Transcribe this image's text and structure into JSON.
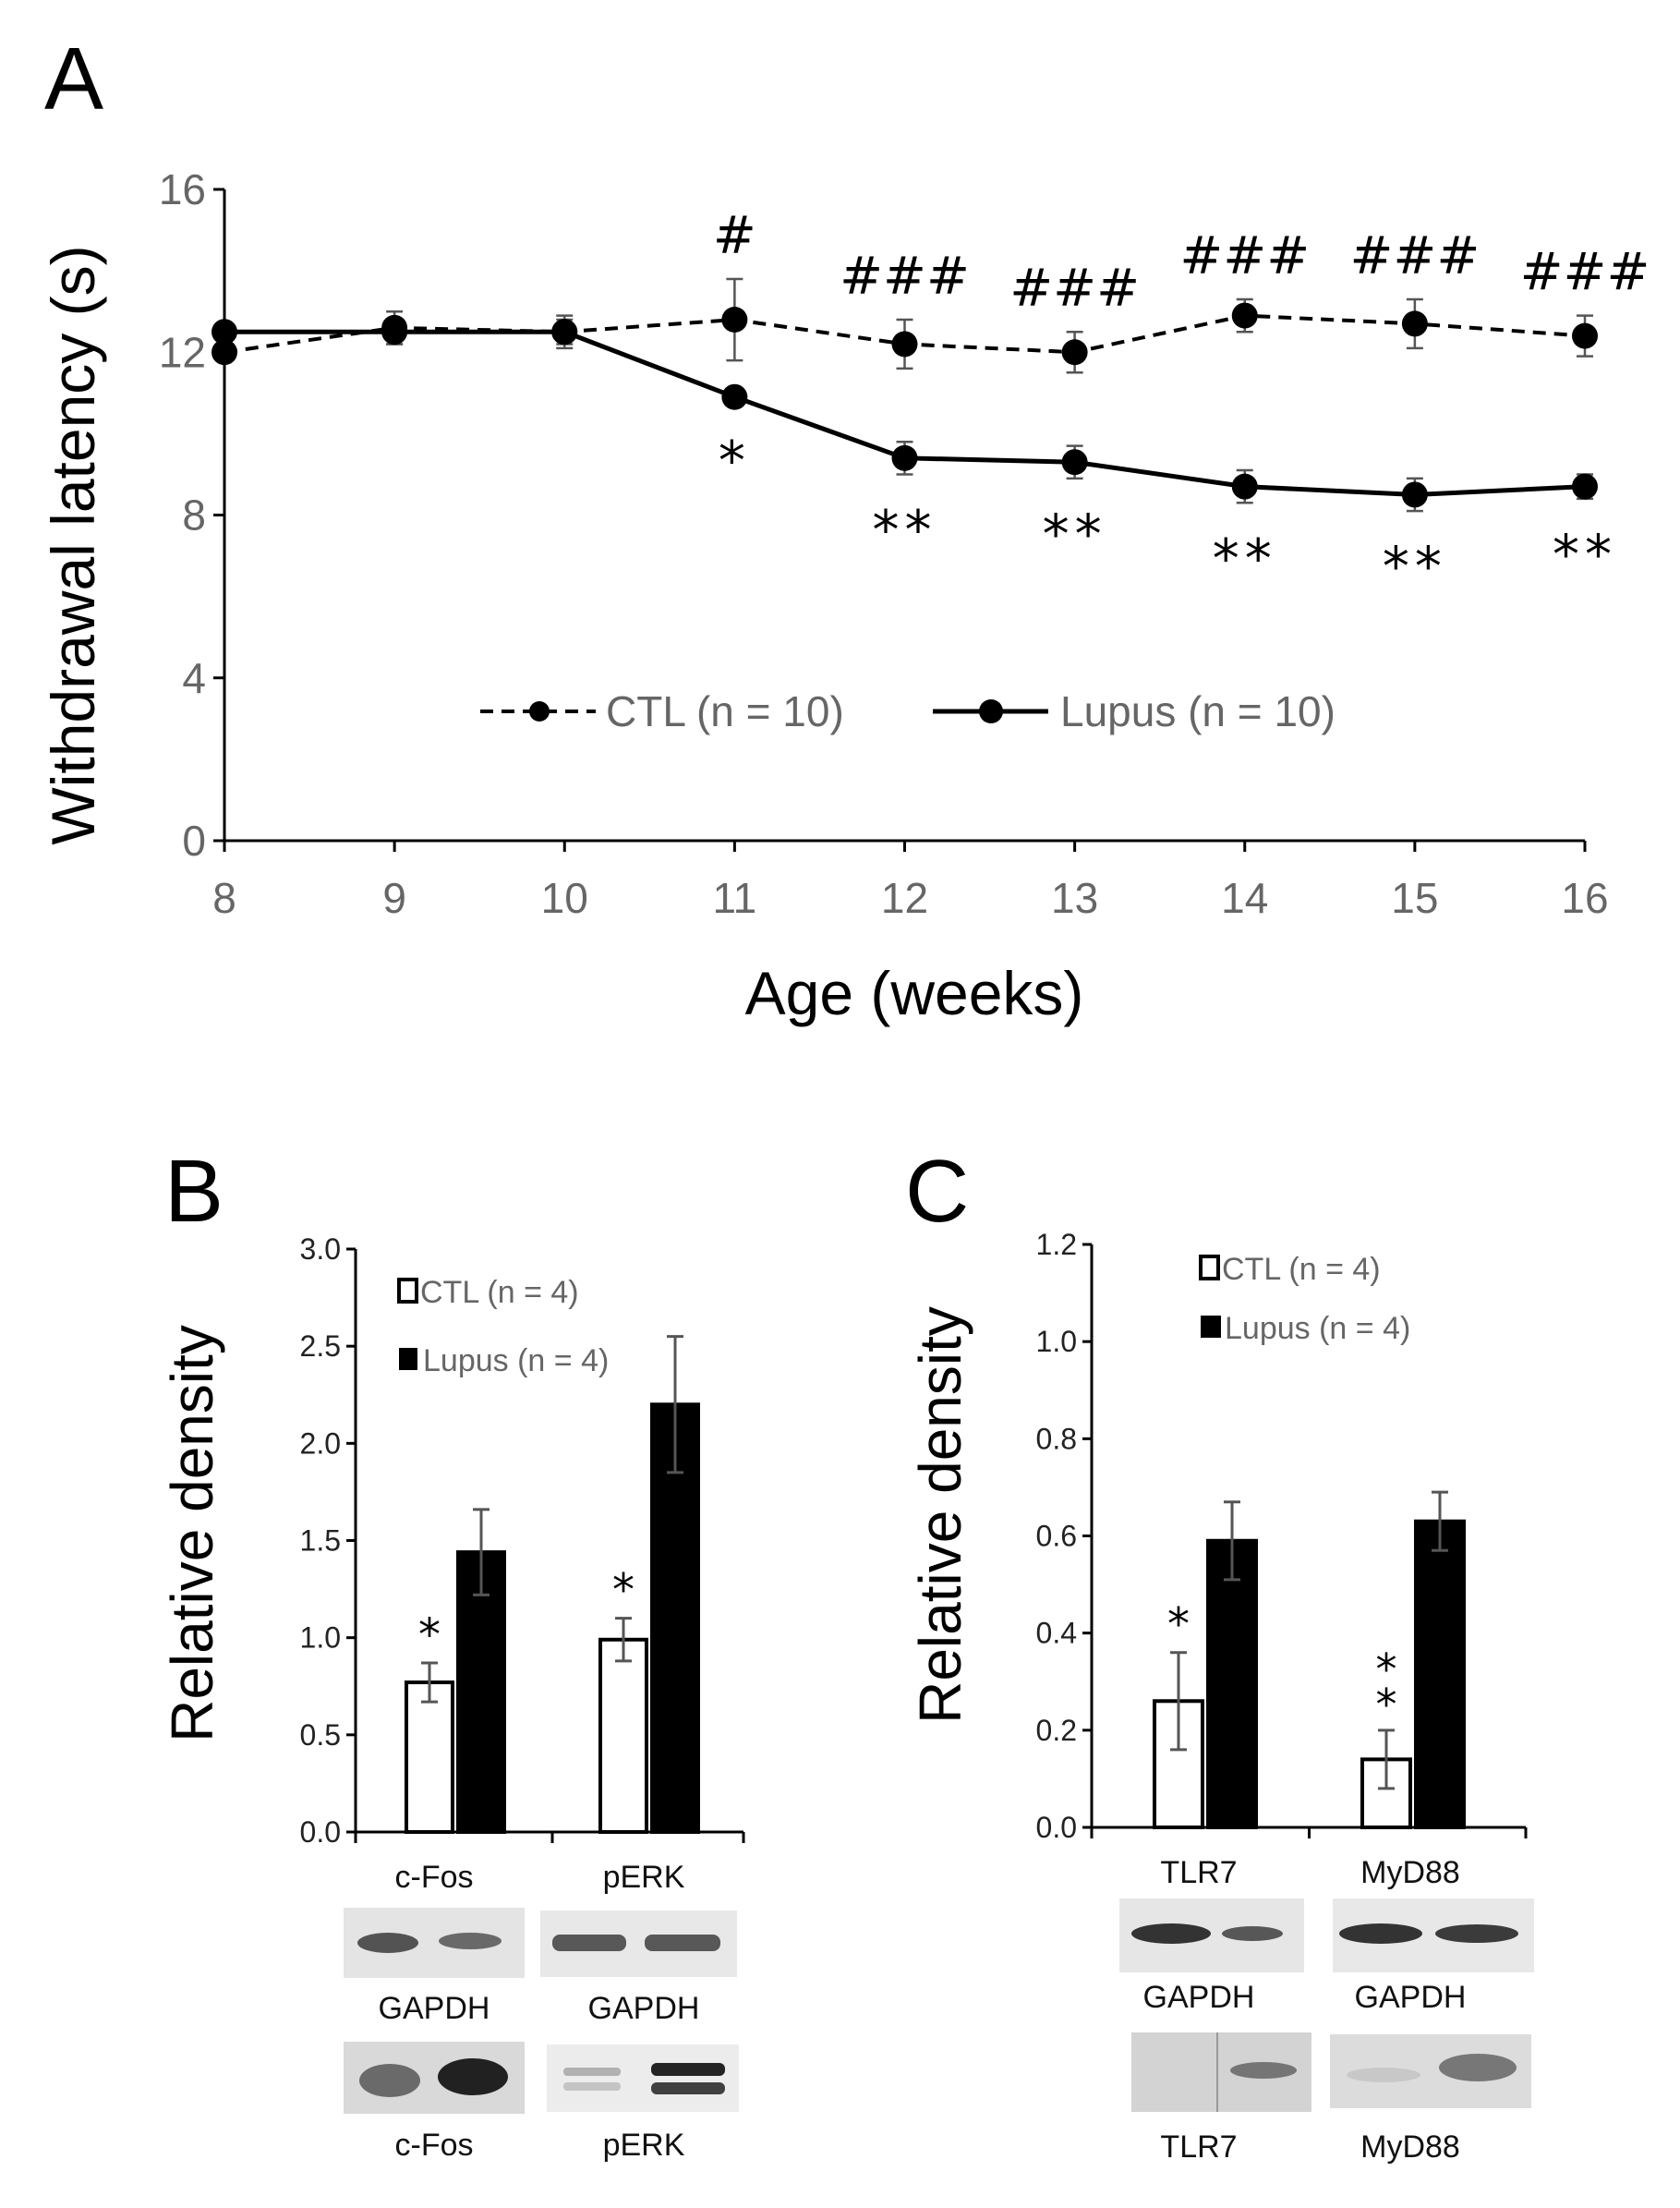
{
  "panels": {
    "a": "A",
    "b": "B",
    "c": "C"
  },
  "colors": {
    "ctl_fill": "#ffffff",
    "lupus_fill": "#000000",
    "axis": "#000000",
    "tick_text": "#666666",
    "error_bar": "#555555",
    "blot_band": "#2a2a2a",
    "blot_bg": "#e6e6e6"
  },
  "chart_data": [
    {
      "id": "A",
      "type": "line",
      "xlabel": "Age (weeks)",
      "ylabel": "Withdrawal latency (s)",
      "x": [
        8,
        9,
        10,
        11,
        12,
        13,
        14,
        15,
        16
      ],
      "x_ticks": [
        "8",
        "9",
        "10",
        "11",
        "12",
        "13",
        "14",
        "15",
        "16"
      ],
      "y_ticks": [
        "0",
        "4",
        "8",
        "12",
        "16"
      ],
      "ylim": [
        0,
        16
      ],
      "grid": false,
      "legend_position": "lower-center",
      "series": [
        {
          "name": "CTL (n = 10)",
          "style": "dashed",
          "values": [
            12.0,
            12.6,
            12.5,
            12.8,
            12.2,
            12.0,
            12.9,
            12.7,
            12.4
          ],
          "error": [
            0.2,
            0.4,
            0.4,
            1.0,
            0.6,
            0.5,
            0.4,
            0.6,
            0.5
          ]
        },
        {
          "name": "Lupus (n = 10)",
          "style": "solid",
          "values": [
            12.5,
            12.5,
            12.5,
            10.9,
            9.4,
            9.3,
            8.7,
            8.5,
            8.7
          ],
          "error": [
            0.2,
            0.3,
            0.3,
            0.2,
            0.4,
            0.4,
            0.4,
            0.4,
            0.3
          ]
        }
      ],
      "annotations_hash": [
        "",
        "",
        "",
        "#",
        "###",
        "###",
        "###",
        "###",
        "###"
      ],
      "annotations_star": [
        "",
        "",
        "",
        "*",
        "**",
        "**",
        "**",
        "**",
        "**"
      ]
    },
    {
      "id": "B",
      "type": "bar",
      "ylabel": "Relative density",
      "categories": [
        "c-Fos",
        "pERK"
      ],
      "y_ticks": [
        "0.0",
        "0.5",
        "1.0",
        "1.5",
        "2.0",
        "2.5",
        "3.0"
      ],
      "ylim": [
        0,
        3.0
      ],
      "legend_position": "top-left",
      "series": [
        {
          "name": "CTL (n = 4)",
          "values": [
            0.77,
            0.99
          ],
          "error": [
            0.1,
            0.11
          ]
        },
        {
          "name": "Lupus (n = 4)",
          "values": [
            1.44,
            2.2
          ],
          "error": [
            0.22,
            0.35
          ]
        }
      ],
      "annotations": [
        "*",
        "*"
      ]
    },
    {
      "id": "C",
      "type": "bar",
      "ylabel": "Relative density",
      "categories": [
        "TLR7",
        "MyD88"
      ],
      "y_ticks": [
        "0.0",
        "0.2",
        "0.4",
        "0.6",
        "0.8",
        "1.0",
        "1.2"
      ],
      "ylim": [
        0,
        1.2
      ],
      "legend_position": "top-left",
      "series": [
        {
          "name": "CTL (n = 4)",
          "values": [
            0.26,
            0.14
          ],
          "error": [
            0.1,
            0.06
          ]
        },
        {
          "name": "Lupus (n = 4)",
          "values": [
            0.59,
            0.63
          ],
          "error": [
            0.08,
            0.06
          ]
        }
      ],
      "annotations": [
        "*",
        "**"
      ]
    }
  ],
  "blots": {
    "b": {
      "top_labels": [
        "c-Fos",
        "pERK"
      ],
      "mid_labels": [
        "GAPDH",
        "GAPDH"
      ],
      "bottom_labels": [
        "c-Fos",
        "pERK"
      ]
    },
    "c": {
      "top_labels": [
        "TLR7",
        "MyD88"
      ],
      "mid_labels": [
        "GAPDH",
        "GAPDH"
      ],
      "bottom_labels": [
        "TLR7",
        "MyD88"
      ]
    }
  }
}
